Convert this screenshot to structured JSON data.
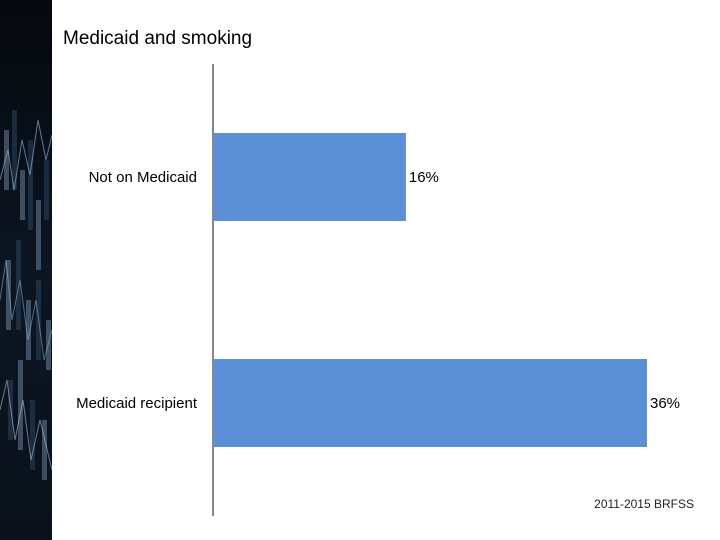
{
  "chart_data": {
    "type": "bar",
    "orientation": "horizontal",
    "title": "Medicaid and smoking",
    "categories": [
      "Not on Medicaid",
      "Medicaid recipient"
    ],
    "values": [
      16,
      36
    ],
    "data_labels": [
      "16%",
      "36%"
    ],
    "unit": "%",
    "xlabel": "",
    "ylabel": "",
    "xlim": [
      0,
      36
    ],
    "grid": false,
    "legend": "none",
    "bar_color": "#5a8fd6"
  },
  "footer": {
    "source": "2011-2015 BRFSS"
  },
  "decor": {
    "strip_colors": [
      "#0c1522",
      "#3d5f83",
      "#9fc0e2"
    ]
  }
}
